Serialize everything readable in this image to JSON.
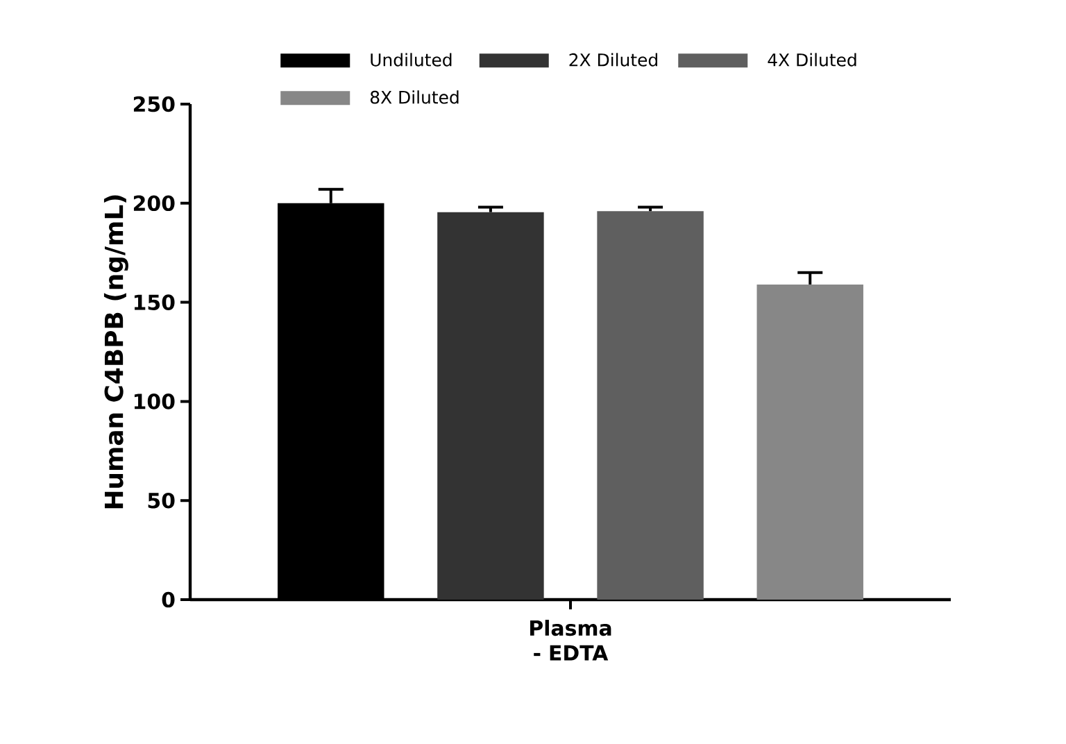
{
  "chart_data": {
    "type": "bar",
    "ylabel": "Human C4BPB (ng/mL)",
    "categories": [
      "Plasma - EDTA"
    ],
    "series": [
      {
        "name": "Undiluted",
        "color": "#000000",
        "values": [
          200
        ],
        "errors": [
          [
            200,
            207
          ]
        ]
      },
      {
        "name": "2X Diluted",
        "color": "#333333",
        "values": [
          195.5
        ],
        "errors": [
          [
            195.5,
            198
          ]
        ]
      },
      {
        "name": "4X Diluted",
        "color": "#5f5f5f",
        "values": [
          196
        ],
        "errors": [
          [
            196,
            198
          ]
        ]
      },
      {
        "name": "8X Diluted",
        "color": "#878787",
        "values": [
          159
        ],
        "errors": [
          [
            159,
            165
          ]
        ]
      }
    ],
    "ylim": [
      0,
      250
    ],
    "yticks": [
      0,
      50,
      100,
      150,
      200,
      250
    ],
    "grid": false,
    "legend": "top"
  }
}
